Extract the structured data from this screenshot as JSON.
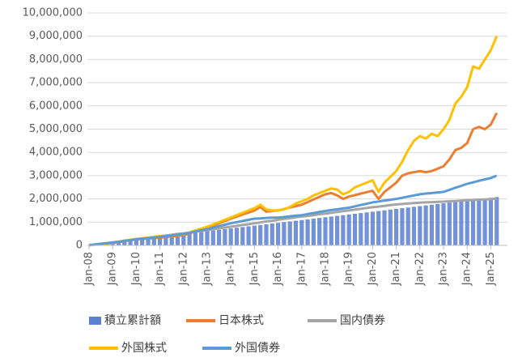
{
  "chart_data": {
    "type": "combo",
    "categories": [
      "Jan-08",
      null,
      null,
      null,
      "Jan-09",
      null,
      null,
      null,
      "Jan-10",
      null,
      null,
      null,
      "Jan-11",
      null,
      null,
      null,
      "Jan-12",
      null,
      null,
      null,
      "Jan-13",
      null,
      null,
      null,
      "Jan-14",
      null,
      null,
      null,
      "Jan-15",
      null,
      null,
      null,
      "Jan-16",
      null,
      null,
      null,
      "Jan-17",
      null,
      null,
      null,
      "Jan-18",
      null,
      null,
      null,
      "Jan-19",
      null,
      null,
      null,
      "Jan-20",
      null,
      null,
      null,
      "Jan-21",
      null,
      null,
      null,
      "Jan-22",
      null,
      null,
      null,
      "Jan-23",
      null,
      null,
      null,
      "Jan-24",
      null,
      null,
      null,
      "Jan-25",
      null
    ],
    "series": [
      {
        "name": "積立累計額",
        "type": "bar",
        "color": "#5b7fd1",
        "values": [
          10000,
          40000,
          70000,
          100000,
          130000,
          160000,
          190000,
          220000,
          250000,
          280000,
          310000,
          340000,
          370000,
          400000,
          430000,
          460000,
          490000,
          520000,
          550000,
          580000,
          610000,
          640000,
          670000,
          700000,
          730000,
          760000,
          790000,
          820000,
          850000,
          880000,
          910000,
          940000,
          970000,
          1000000,
          1030000,
          1060000,
          1090000,
          1120000,
          1150000,
          1180000,
          1210000,
          1240000,
          1270000,
          1300000,
          1330000,
          1360000,
          1390000,
          1420000,
          1450000,
          1480000,
          1510000,
          1540000,
          1570000,
          1600000,
          1630000,
          1660000,
          1690000,
          1720000,
          1750000,
          1780000,
          1810000,
          1840000,
          1870000,
          1900000,
          1930000,
          1960000,
          1990000,
          2020000,
          2050000,
          2080000
        ]
      },
      {
        "name": "日本株式",
        "type": "line",
        "color": "#ed7d31",
        "values": [
          10000,
          30000,
          60000,
          80000,
          100000,
          140000,
          180000,
          220000,
          260000,
          280000,
          300000,
          310000,
          330000,
          360000,
          390000,
          410000,
          440000,
          520000,
          600000,
          670000,
          750000,
          850000,
          950000,
          1050000,
          1150000,
          1240000,
          1330000,
          1410000,
          1500000,
          1650000,
          1450000,
          1480000,
          1500000,
          1560000,
          1630000,
          1690000,
          1750000,
          1860000,
          1980000,
          2090000,
          2200000,
          2250000,
          2150000,
          2000000,
          2100000,
          2160000,
          2230000,
          2290000,
          2350000,
          2000000,
          2300000,
          2500000,
          2700000,
          3000000,
          3100000,
          3150000,
          3200000,
          3150000,
          3200000,
          3300000,
          3400000,
          3700000,
          4100000,
          4200000,
          4400000,
          5000000,
          5100000,
          5000000,
          5200000,
          5700000
        ]
      },
      {
        "name": "国内債券",
        "type": "line",
        "color": "#a5a5a5",
        "values": [
          10000,
          40000,
          70000,
          100000,
          130000,
          160000,
          200000,
          230000,
          270000,
          300000,
          330000,
          360000,
          390000,
          420000,
          460000,
          490000,
          520000,
          555000,
          590000,
          625000,
          660000,
          695000,
          730000,
          765000,
          800000,
          840000,
          880000,
          910000,
          950000,
          990000,
          1030000,
          1060000,
          1100000,
          1140000,
          1170000,
          1210000,
          1240000,
          1270000,
          1300000,
          1340000,
          1370000,
          1400000,
          1440000,
          1470000,
          1500000,
          1540000,
          1570000,
          1610000,
          1640000,
          1670000,
          1700000,
          1730000,
          1760000,
          1780000,
          1800000,
          1820000,
          1840000,
          1850000,
          1860000,
          1870000,
          1880000,
          1900000,
          1910000,
          1930000,
          1940000,
          1950000,
          1970000,
          1980000,
          1990000,
          2010000
        ]
      },
      {
        "name": "外国株式",
        "type": "line",
        "color": "#ffc000",
        "values": [
          10000,
          30000,
          50000,
          70000,
          100000,
          150000,
          210000,
          240000,
          280000,
          300000,
          330000,
          370000,
          400000,
          430000,
          440000,
          460000,
          480000,
          560000,
          640000,
          720000,
          800000,
          900000,
          1000000,
          1100000,
          1200000,
          1300000,
          1400000,
          1500000,
          1600000,
          1750000,
          1550000,
          1500000,
          1500000,
          1550000,
          1650000,
          1800000,
          1900000,
          2000000,
          2150000,
          2250000,
          2350000,
          2450000,
          2400000,
          2200000,
          2300000,
          2500000,
          2600000,
          2700000,
          2800000,
          2300000,
          2700000,
          2950000,
          3200000,
          3600000,
          4100000,
          4500000,
          4700000,
          4600000,
          4800000,
          4700000,
          5000000,
          5400000,
          6100000,
          6400000,
          6800000,
          7700000,
          7600000,
          8000000,
          8400000,
          9000000
        ]
      },
      {
        "name": "外国債券",
        "type": "line",
        "color": "#5b9bd5",
        "values": [
          10000,
          40000,
          70000,
          90000,
          120000,
          155000,
          190000,
          225000,
          260000,
          290000,
          310000,
          340000,
          370000,
          400000,
          430000,
          460000,
          490000,
          540000,
          600000,
          650000,
          700000,
          760000,
          830000,
          890000,
          950000,
          1000000,
          1050000,
          1100000,
          1150000,
          1160000,
          1180000,
          1190000,
          1200000,
          1220000,
          1250000,
          1280000,
          1300000,
          1350000,
          1390000,
          1440000,
          1480000,
          1520000,
          1550000,
          1590000,
          1620000,
          1680000,
          1740000,
          1790000,
          1850000,
          1890000,
          1930000,
          1960000,
          2000000,
          2050000,
          2100000,
          2150000,
          2200000,
          2230000,
          2250000,
          2280000,
          2300000,
          2390000,
          2480000,
          2560000,
          2650000,
          2710000,
          2780000,
          2840000,
          2900000,
          3000000
        ]
      }
    ],
    "ylim": [
      0,
      10000000
    ],
    "yticks": [
      0,
      {
        "value": 1000000,
        "label": "1,000,000"
      },
      {
        "value": 2000000,
        "label": "2,000,000"
      },
      {
        "value": 3000000,
        "label": "3,000,000"
      },
      {
        "value": 4000000,
        "label": "4,000,000"
      },
      {
        "value": 5000000,
        "label": "5,000,000"
      },
      {
        "value": 6000000,
        "label": "6,000,000"
      },
      {
        "value": 7000000,
        "label": "7,000,000"
      },
      {
        "value": 8000000,
        "label": "8,000,000"
      },
      {
        "value": 9000000,
        "label": "9,000,000"
      },
      {
        "value": 10000000,
        "label": "10,000,000"
      }
    ],
    "grid": true
  }
}
